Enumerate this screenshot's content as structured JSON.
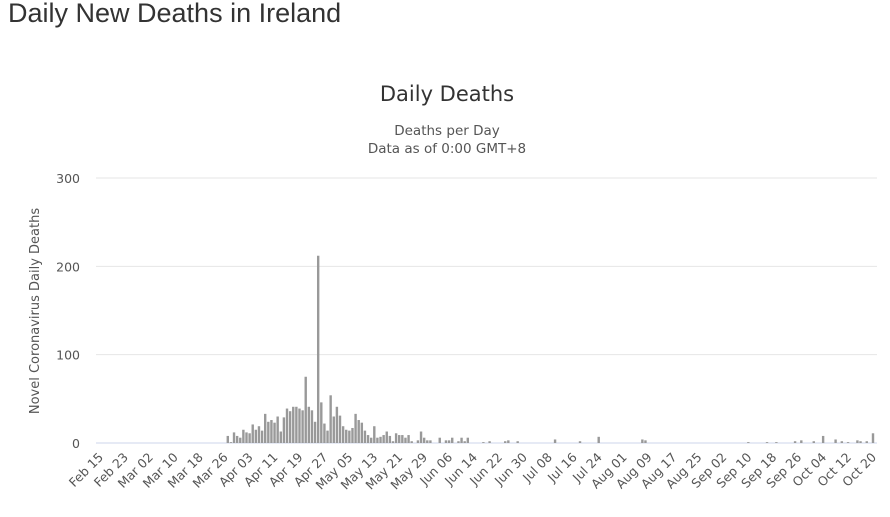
{
  "page": {
    "heading": "Daily New Deaths in Ireland"
  },
  "chart_data": {
    "type": "bar",
    "title": "Daily Deaths",
    "subtitle": [
      "Deaths per Day",
      "Data as of 0:00 GMT+8"
    ],
    "xlabel": "",
    "ylabel": "Novel Coronavirus Daily Deaths",
    "ylim": [
      0,
      300
    ],
    "y_ticks": [
      0,
      100,
      200,
      300
    ],
    "start_date": "Feb 15",
    "end_date": "Oct 20",
    "x_tick_every_days": 8,
    "x_tick_labels": [
      "Feb 15",
      "Feb 23",
      "Mar 02",
      "Mar 10",
      "Mar 18",
      "Mar 26",
      "Apr 03",
      "Apr 11",
      "Apr 19",
      "Apr 27",
      "May 05",
      "May 13",
      "May 21",
      "May 29",
      "Jun 06",
      "Jun 14",
      "Jun 22",
      "Jun 30",
      "Jul 08",
      "Jul 16",
      "Jul 24",
      "Aug 01",
      "Aug 09",
      "Aug 17",
      "Aug 25",
      "Sep 02",
      "Sep 10",
      "Sep 18",
      "Sep 26",
      "Oct 04",
      "Oct 12",
      "Oct 20"
    ],
    "grid": true,
    "legend": "none",
    "colors": {
      "bar": "#999999",
      "grid": "#e6e6e6",
      "axis": "#ccd6eb"
    },
    "values": [
      0,
      0,
      0,
      0,
      0,
      0,
      0,
      0,
      0,
      0,
      0,
      0,
      0,
      0,
      0,
      0,
      0,
      0,
      0,
      0,
      0,
      0,
      0,
      0,
      0,
      0,
      0,
      0,
      0,
      0,
      0,
      0,
      0,
      0,
      0,
      0,
      0,
      0,
      0,
      0,
      0,
      8,
      1,
      12,
      8,
      6,
      15,
      12,
      11,
      21,
      15,
      19,
      14,
      33,
      24,
      26,
      23,
      30,
      13,
      29,
      39,
      36,
      41,
      41,
      39,
      37,
      75,
      41,
      37,
      24,
      212,
      46,
      22,
      14,
      54,
      30,
      41,
      31,
      19,
      15,
      14,
      17,
      33,
      26,
      23,
      14,
      9,
      6,
      19,
      6,
      7,
      9,
      13,
      8,
      2,
      11,
      9,
      9,
      6,
      9,
      2,
      0,
      3,
      13,
      6,
      3,
      3,
      0,
      0,
      6,
      0,
      3,
      3,
      6,
      0,
      2,
      6,
      2,
      6,
      0,
      0,
      0,
      0,
      1,
      0,
      2,
      0,
      0,
      0,
      0,
      2,
      3,
      0,
      0,
      2,
      0,
      0,
      0,
      0,
      0,
      0,
      0,
      0,
      0,
      0,
      0,
      4,
      0,
      0,
      0,
      0,
      0,
      0,
      0,
      2,
      0,
      0,
      0,
      0,
      0,
      7,
      0,
      0,
      0,
      0,
      0,
      0,
      0,
      0,
      0,
      0,
      0,
      0,
      0,
      4,
      3,
      0,
      0,
      0,
      0,
      0,
      0,
      0,
      0,
      0,
      0,
      0,
      0,
      0,
      0,
      0,
      0,
      0,
      0,
      0,
      0,
      0,
      0,
      0,
      0,
      0,
      0,
      0,
      0,
      0,
      0,
      0,
      0,
      1,
      0,
      0,
      0,
      0,
      0,
      1,
      0,
      0,
      1,
      0,
      0,
      0,
      0,
      0,
      2,
      0,
      3,
      0,
      0,
      0,
      2,
      0,
      0,
      8,
      0,
      0,
      0,
      4,
      0,
      2,
      0,
      1,
      0,
      0,
      3,
      2,
      0,
      2,
      0,
      11
    ]
  }
}
